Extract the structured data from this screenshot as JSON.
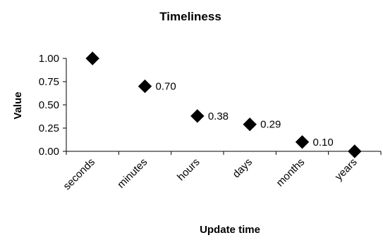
{
  "chart_data": {
    "type": "scatter",
    "title": "Timeliness",
    "xlabel": "Update time",
    "ylabel": "Value",
    "categories": [
      "seconds",
      "minutes",
      "hours",
      "days",
      "months",
      "years"
    ],
    "values": [
      1.0,
      0.7,
      0.38,
      0.29,
      0.1,
      0.0
    ],
    "data_labels": [
      "",
      "0.70",
      "0.38",
      "0.29",
      "0.10",
      ""
    ],
    "ylim": [
      0,
      1
    ],
    "yticks": [
      "1.00",
      "0.75",
      "0.50",
      "0.25",
      "0.00"
    ],
    "grid": false,
    "legend": "none",
    "marker": "diamond",
    "marker_color": "#000000"
  }
}
